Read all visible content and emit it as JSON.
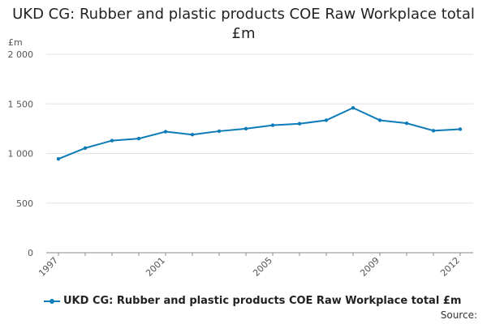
{
  "title": "UKD CG: Rubber and plastic products COE Raw Workplace total £m",
  "source_label": "Source:",
  "chart_data": {
    "type": "line",
    "title": "UKD CG: Rubber and plastic products COE Raw Workplace total £m",
    "ylabel": "£m",
    "xlabel": "",
    "ylim": [
      0,
      2000
    ],
    "yticks": [
      0,
      500,
      1000,
      1500,
      2000
    ],
    "ytick_labels": [
      "0",
      "500",
      "1 000",
      "1 500",
      "2 000"
    ],
    "xticks": [
      "1997",
      "2001",
      "2005",
      "2009",
      "2012"
    ],
    "x": [
      1997,
      1998,
      1999,
      2000,
      2001,
      2002,
      2003,
      2004,
      2005,
      2006,
      2007,
      2008,
      2009,
      2010,
      2011,
      2012
    ],
    "series": [
      {
        "name": "UKD CG: Rubber and plastic products COE Raw Workplace total £m",
        "color": "#0c7bb7",
        "values": [
          945,
          1055,
          1130,
          1150,
          1220,
          1190,
          1225,
          1250,
          1285,
          1300,
          1335,
          1460,
          1335,
          1305,
          1230,
          1245
        ]
      }
    ],
    "grid": true,
    "legend_position": "bottom-left"
  }
}
